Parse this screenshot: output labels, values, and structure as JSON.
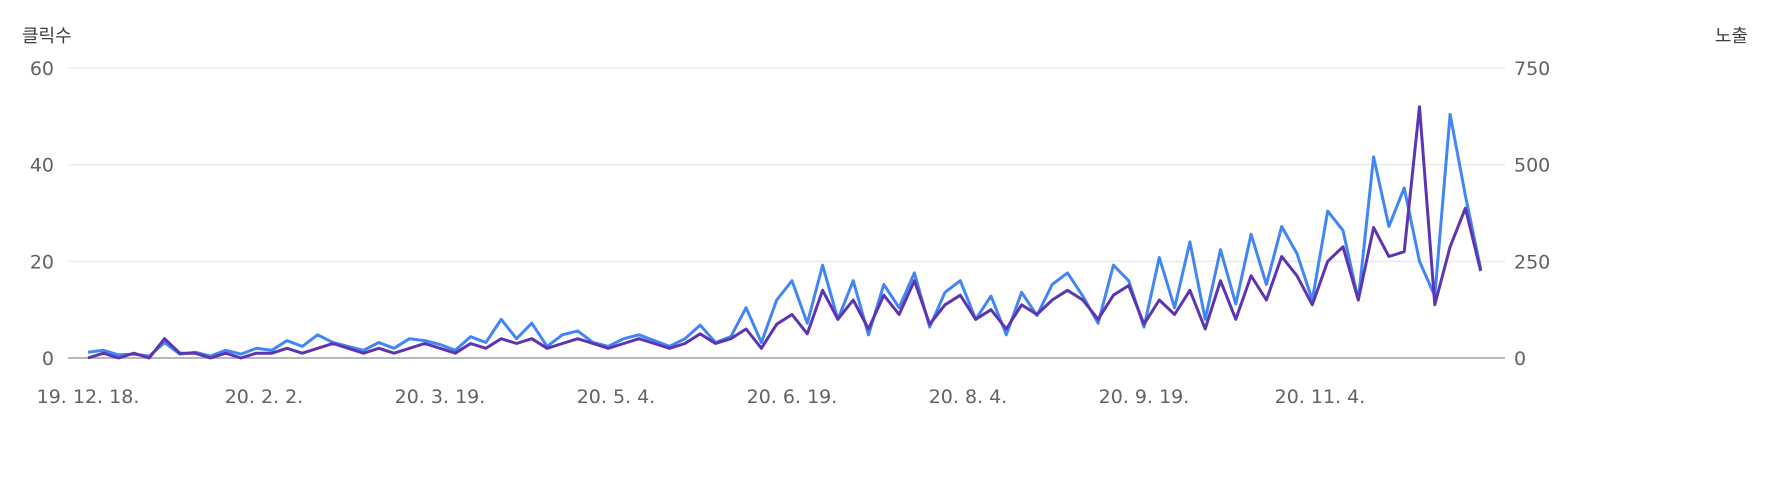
{
  "chart_data": {
    "type": "line",
    "left_axis_title": "클릭수",
    "right_axis_title": "노출",
    "left_ylim": [
      0,
      60
    ],
    "right_ylim": [
      0,
      750
    ],
    "left_ticks": [
      "0",
      "20",
      "40",
      "60"
    ],
    "right_ticks": [
      "0",
      "250",
      "500",
      "750"
    ],
    "xtick_labels": [
      "19. 12. 18.",
      "20. 2. 2.",
      "20. 3. 19.",
      "20. 5. 4.",
      "20. 6. 19.",
      "20. 8. 4.",
      "20. 9. 19.",
      "20. 11. 4."
    ],
    "grid": true,
    "x": [
      "2019-12-18",
      "2019-12-22",
      "2019-12-26",
      "2019-12-30",
      "2020-01-03",
      "2020-01-07",
      "2020-01-11",
      "2020-01-15",
      "2020-01-19",
      "2020-01-23",
      "2020-01-27",
      "2020-01-31",
      "2020-02-04",
      "2020-02-08",
      "2020-02-12",
      "2020-02-16",
      "2020-02-20",
      "2020-02-24",
      "2020-02-28",
      "2020-03-03",
      "2020-03-07",
      "2020-03-11",
      "2020-03-15",
      "2020-03-19",
      "2020-03-23",
      "2020-03-27",
      "2020-03-31",
      "2020-04-04",
      "2020-04-08",
      "2020-04-12",
      "2020-04-16",
      "2020-04-20",
      "2020-04-24",
      "2020-04-28",
      "2020-05-02",
      "2020-05-06",
      "2020-05-10",
      "2020-05-14",
      "2020-05-18",
      "2020-05-22",
      "2020-05-26",
      "2020-05-30",
      "2020-06-03",
      "2020-06-07",
      "2020-06-11",
      "2020-06-15",
      "2020-06-19",
      "2020-06-23",
      "2020-06-27",
      "2020-07-01",
      "2020-07-05",
      "2020-07-09",
      "2020-07-13",
      "2020-07-17",
      "2020-07-21",
      "2020-07-25",
      "2020-07-29",
      "2020-08-02",
      "2020-08-06",
      "2020-08-10",
      "2020-08-14",
      "2020-08-18",
      "2020-08-22",
      "2020-08-26",
      "2020-08-30",
      "2020-09-03",
      "2020-09-07",
      "2020-09-11",
      "2020-09-15",
      "2020-09-19",
      "2020-09-23",
      "2020-09-27",
      "2020-10-01",
      "2020-10-05",
      "2020-10-09",
      "2020-10-13",
      "2020-10-17",
      "2020-10-21",
      "2020-10-25",
      "2020-10-29",
      "2020-11-02",
      "2020-11-06",
      "2020-11-10",
      "2020-11-14",
      "2020-11-18",
      "2020-11-22",
      "2020-11-26",
      "2020-11-30",
      "2020-12-04",
      "2020-12-08",
      "2020-12-12",
      "2020-12-16"
    ],
    "series": [
      {
        "axis": "left",
        "color": "#5e35b1",
        "values": [
          0,
          1,
          0,
          1,
          0,
          4,
          1,
          1,
          0,
          1,
          0,
          1,
          1,
          2,
          1,
          2,
          3,
          2,
          1,
          2,
          1,
          2,
          3,
          2,
          1,
          3,
          2,
          4,
          3,
          4,
          2,
          3,
          4,
          3,
          2,
          3,
          4,
          3,
          2,
          3,
          5,
          3,
          4,
          6,
          2,
          7,
          9,
          5,
          14,
          8,
          12,
          6,
          13,
          9,
          16,
          7,
          11,
          13,
          8,
          10,
          6,
          11,
          9,
          12,
          14,
          12,
          8,
          13,
          15,
          7,
          12,
          9,
          14,
          6,
          16,
          8,
          17,
          12,
          21,
          17,
          11,
          20,
          23,
          12,
          27,
          21,
          22,
          52,
          11,
          23,
          31,
          18
        ]
      },
      {
        "axis": "right",
        "color": "#4285f4",
        "values": [
          15,
          20,
          8,
          10,
          5,
          40,
          10,
          15,
          5,
          20,
          10,
          25,
          20,
          45,
          30,
          60,
          40,
          30,
          20,
          40,
          25,
          50,
          45,
          35,
          20,
          55,
          40,
          100,
          50,
          90,
          30,
          60,
          70,
          40,
          30,
          50,
          60,
          45,
          30,
          50,
          85,
          40,
          55,
          130,
          40,
          150,
          200,
          90,
          240,
          100,
          200,
          60,
          190,
          130,
          220,
          80,
          170,
          200,
          100,
          160,
          60,
          170,
          110,
          190,
          220,
          160,
          90,
          240,
          200,
          80,
          260,
          130,
          300,
          100,
          280,
          140,
          320,
          190,
          340,
          270,
          150,
          380,
          330,
          150,
          520,
          340,
          440,
          250,
          160,
          630,
          420,
          230
        ]
      }
    ]
  }
}
